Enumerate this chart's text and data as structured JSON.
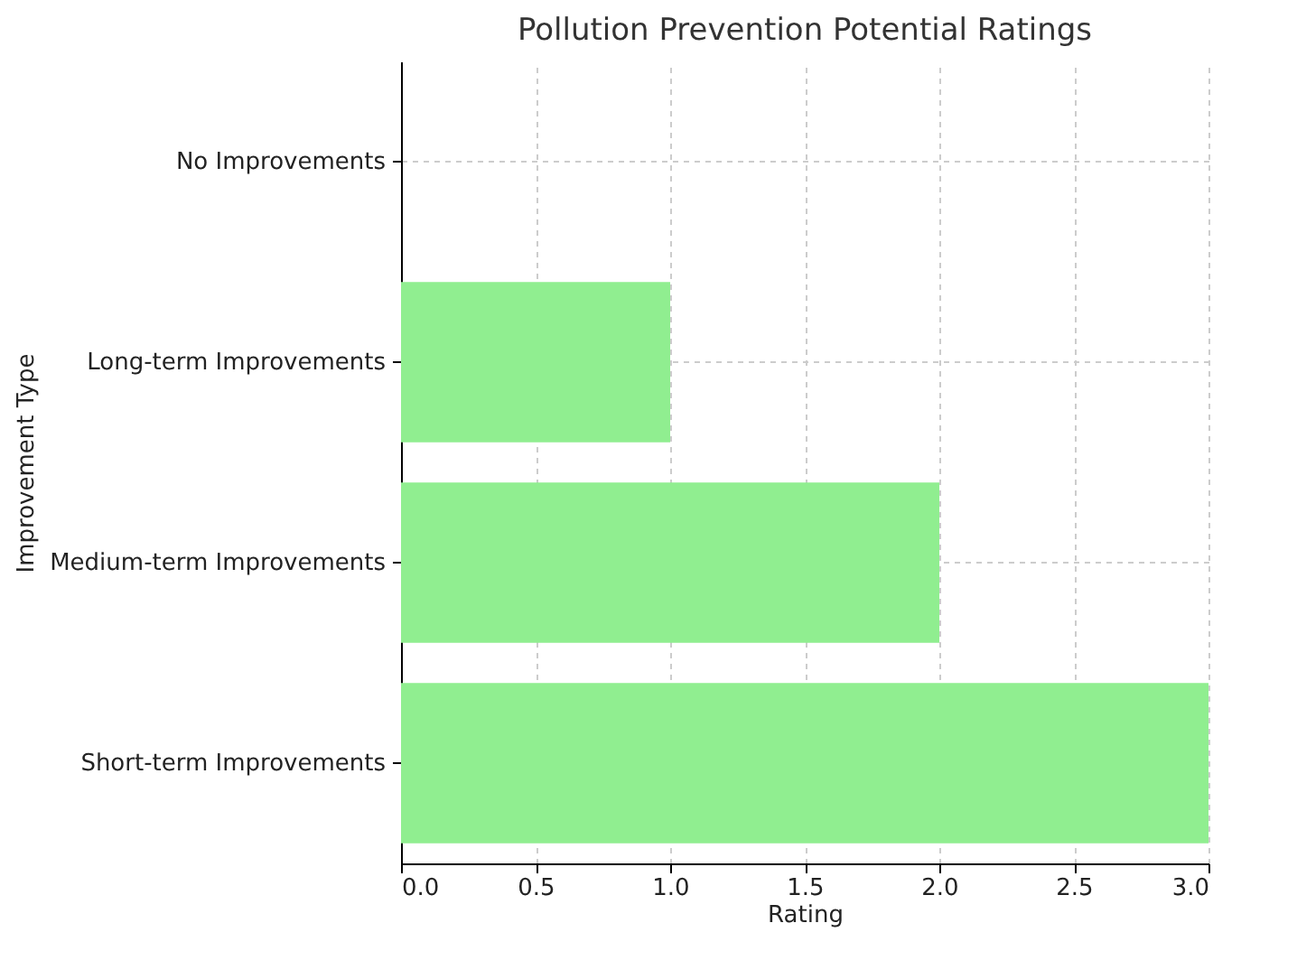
{
  "chart_data": {
    "type": "bar",
    "orientation": "horizontal",
    "title": "Pollution Prevention Potential Ratings",
    "xlabel": "Rating",
    "ylabel": "Improvement Type",
    "categories": [
      "No Improvements",
      "Long-term Improvements",
      "Medium-term Improvements",
      "Short-term Improvements"
    ],
    "values": [
      0,
      1,
      2,
      3
    ],
    "color": "#90ee90",
    "xlim": [
      0,
      3
    ],
    "xticks": [
      {
        "value": 0,
        "label": "0.0"
      },
      0.5,
      {
        "value": 1,
        "label": "1.0"
      },
      1.5,
      {
        "value": 2,
        "label": "2.0"
      },
      2.5,
      {
        "value": 3,
        "label": "3.0"
      }
    ],
    "grid": true
  }
}
